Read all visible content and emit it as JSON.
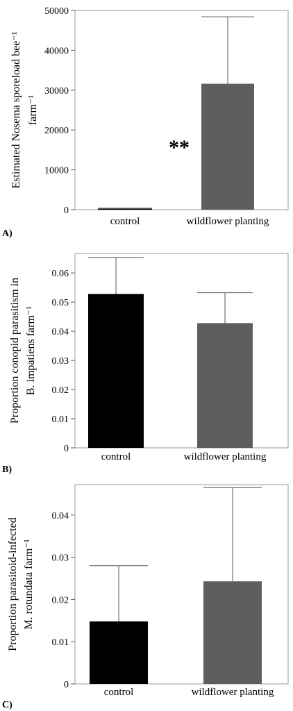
{
  "chart_data": [
    {
      "type": "bar",
      "panel_label": "A)",
      "categories": [
        "control",
        "wildflower planting"
      ],
      "values": [
        250,
        31600
      ],
      "error_upper": [
        400,
        48400
      ],
      "colors": [
        "#000000",
        "#5e5e5e"
      ],
      "ylabel_lines": [
        "Estimated Nosema sporeload bee⁻¹",
        "farm⁻¹"
      ],
      "yticks": [
        "0",
        "10000",
        "20000",
        "30000",
        "40000",
        "50000"
      ],
      "ylim": [
        0,
        50000
      ],
      "annotation": "**"
    },
    {
      "type": "bar",
      "panel_label": "B)",
      "categories": [
        "control",
        "wildflower planting"
      ],
      "values": [
        0.0528,
        0.0428
      ],
      "error_upper": [
        0.0653,
        0.0532
      ],
      "colors": [
        "#000000",
        "#5e5e5e"
      ],
      "ylabel_lines": [
        "Proportion conopid parasitism in",
        "B. impatiens farm⁻¹"
      ],
      "yticks": [
        "0",
        "0.01",
        "0.02",
        "0.03",
        "0.04",
        "0.05",
        "0.06"
      ],
      "ylim": [
        0,
        0.0667
      ]
    },
    {
      "type": "bar",
      "panel_label": "C)",
      "categories": [
        "control",
        "wildflower planting"
      ],
      "values": [
        0.0148,
        0.0243
      ],
      "error_upper": [
        0.028,
        0.0465
      ],
      "colors": [
        "#000000",
        "#5e5e5e"
      ],
      "ylabel_lines": [
        "Proportion parasitoid-infected",
        "M. rotundata farm⁻¹"
      ],
      "yticks": [
        "0",
        "0.01",
        "0.02",
        "0.03",
        "0.04"
      ],
      "ylim": [
        0,
        0.0472
      ]
    }
  ]
}
